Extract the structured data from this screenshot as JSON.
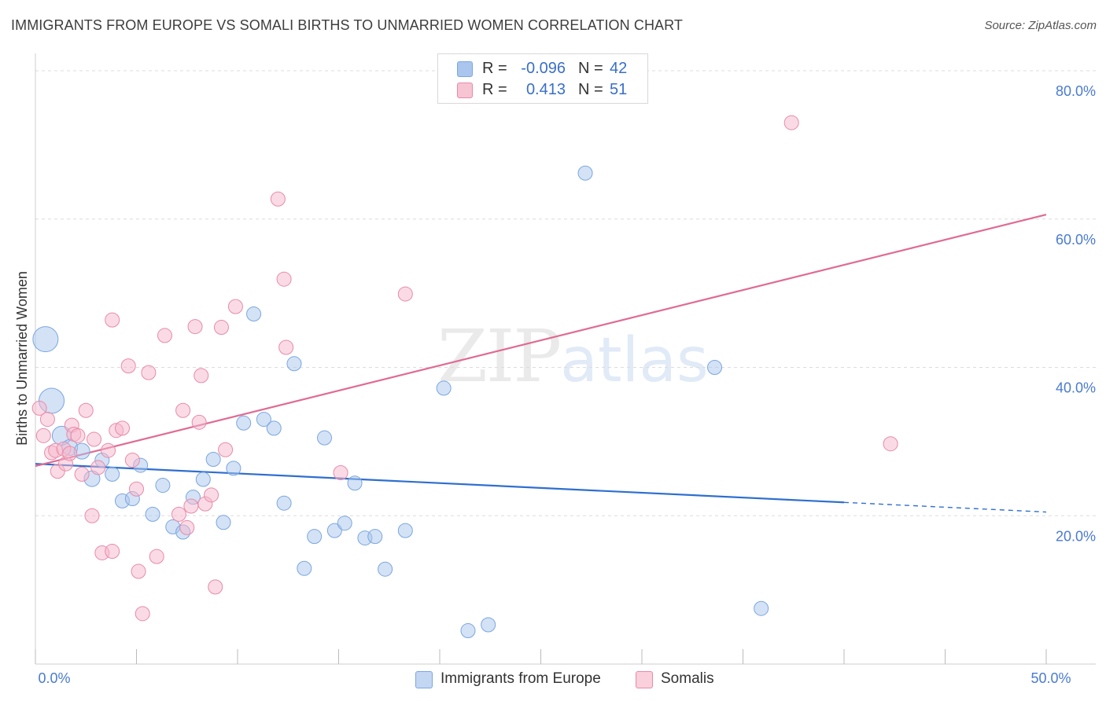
{
  "header": {
    "title": "IMMIGRANTS FROM EUROPE VS SOMALI BIRTHS TO UNMARRIED WOMEN CORRELATION CHART",
    "source": "Source: ZipAtlas.com"
  },
  "watermark": {
    "zip": "ZIP",
    "atlas": "atlas"
  },
  "legend": {
    "rows": [
      {
        "r_label": "R =",
        "r_value": "-0.096",
        "n_label": "N =",
        "n_value": "42",
        "color": "#aac6ee"
      },
      {
        "r_label": "R =",
        "r_value": "0.413",
        "n_label": "N =",
        "n_value": "51",
        "color": "#f6b8cb"
      }
    ]
  },
  "bottom_legend": [
    {
      "label": "Immigrants from Europe",
      "color": "#aac6ee"
    },
    {
      "label": "Somalis",
      "color": "#f6b8cb"
    }
  ],
  "chart_data": {
    "type": "scatter",
    "title": "IMMIGRANTS FROM EUROPE VS SOMALI BIRTHS TO UNMARRIED WOMEN CORRELATION CHART",
    "xlabel": "",
    "ylabel": "Births to Unmarried Women",
    "xlim": [
      0,
      50
    ],
    "ylim": [
      0,
      80
    ],
    "x_tick_labels": [
      {
        "value": 0,
        "label": "0.0%"
      },
      {
        "value": 50,
        "label": "50.0%"
      }
    ],
    "y_tick_labels": [
      {
        "value": 20,
        "label": "20.0%"
      },
      {
        "value": 40,
        "label": "40.0%"
      },
      {
        "value": 60,
        "label": "60.0%"
      },
      {
        "value": 80,
        "label": "80.0%"
      }
    ],
    "series": [
      {
        "name": "Immigrants from Europe",
        "color": "#aac6ee",
        "stroke": "#7aa6e0",
        "trend": {
          "x": [
            0,
            40
          ],
          "y": [
            27.0,
            21.8
          ],
          "dashed_to": [
            50,
            20.5
          ],
          "color": "#2f6fcf"
        },
        "points": [
          [
            0.5,
            43.8,
            16
          ],
          [
            0.8,
            35.5,
            16
          ],
          [
            1.3,
            30.8,
            12
          ],
          [
            1.7,
            29.2,
            10
          ],
          [
            2.3,
            28.7,
            10
          ],
          [
            2.8,
            25.0,
            10
          ],
          [
            3.3,
            27.5,
            9
          ],
          [
            3.8,
            25.6,
            9
          ],
          [
            4.3,
            22.0,
            9
          ],
          [
            4.8,
            22.3,
            9
          ],
          [
            5.2,
            26.8,
            9
          ],
          [
            5.8,
            20.2,
            9
          ],
          [
            6.3,
            24.1,
            9
          ],
          [
            6.8,
            18.5,
            9
          ],
          [
            7.3,
            17.8,
            9
          ],
          [
            7.8,
            22.5,
            9
          ],
          [
            8.3,
            24.9,
            9
          ],
          [
            8.8,
            27.6,
            9
          ],
          [
            9.3,
            19.1,
            9
          ],
          [
            9.8,
            26.4,
            9
          ],
          [
            10.3,
            32.5,
            9
          ],
          [
            10.8,
            47.2,
            9
          ],
          [
            11.3,
            33.0,
            9
          ],
          [
            11.8,
            31.8,
            9
          ],
          [
            12.3,
            21.7,
            9
          ],
          [
            12.8,
            40.5,
            9
          ],
          [
            13.3,
            12.9,
            9
          ],
          [
            13.8,
            17.2,
            9
          ],
          [
            14.3,
            30.5,
            9
          ],
          [
            14.8,
            18.0,
            9
          ],
          [
            15.3,
            19.0,
            9
          ],
          [
            15.8,
            24.4,
            9
          ],
          [
            16.3,
            17.0,
            9
          ],
          [
            16.8,
            17.2,
            9
          ],
          [
            17.3,
            12.8,
            9
          ],
          [
            18.3,
            18.0,
            9
          ],
          [
            20.2,
            37.2,
            9
          ],
          [
            21.4,
            4.5,
            9
          ],
          [
            22.4,
            5.3,
            9
          ],
          [
            27.2,
            66.2,
            9
          ],
          [
            33.6,
            40.0,
            9
          ],
          [
            35.9,
            7.5,
            9
          ]
        ]
      },
      {
        "name": "Somalis",
        "color": "#f6b8cb",
        "stroke": "#e98aa8",
        "trend": {
          "x": [
            0,
            50
          ],
          "y": [
            26.7,
            60.6
          ],
          "color": "#e06a93"
        },
        "points": [
          [
            0.2,
            34.5,
            9
          ],
          [
            0.4,
            30.8,
            9
          ],
          [
            0.6,
            33.0,
            9
          ],
          [
            0.8,
            28.5,
            9
          ],
          [
            1.0,
            28.8,
            9
          ],
          [
            1.1,
            26.0,
            9
          ],
          [
            1.4,
            29.0,
            9
          ],
          [
            1.5,
            27.0,
            9
          ],
          [
            1.7,
            28.4,
            9
          ],
          [
            1.8,
            32.2,
            9
          ],
          [
            1.9,
            31.0,
            9
          ],
          [
            2.1,
            30.8,
            9
          ],
          [
            2.3,
            25.6,
            9
          ],
          [
            2.5,
            34.2,
            9
          ],
          [
            2.8,
            20.0,
            9
          ],
          [
            2.9,
            30.3,
            9
          ],
          [
            3.1,
            26.5,
            9
          ],
          [
            3.3,
            15.0,
            9
          ],
          [
            3.6,
            28.8,
            9
          ],
          [
            3.8,
            15.2,
            9
          ],
          [
            3.8,
            46.4,
            9
          ],
          [
            4.0,
            31.5,
            9
          ],
          [
            4.3,
            31.8,
            9
          ],
          [
            4.6,
            40.2,
            9
          ],
          [
            4.8,
            27.5,
            9
          ],
          [
            5.0,
            23.6,
            9
          ],
          [
            5.1,
            12.5,
            9
          ],
          [
            5.3,
            6.8,
            9
          ],
          [
            5.6,
            39.3,
            9
          ],
          [
            6.0,
            14.5,
            9
          ],
          [
            6.4,
            44.3,
            9
          ],
          [
            7.1,
            20.2,
            9
          ],
          [
            7.3,
            34.2,
            9
          ],
          [
            7.5,
            18.4,
            9
          ],
          [
            7.7,
            21.3,
            9
          ],
          [
            7.9,
            45.5,
            9
          ],
          [
            8.1,
            32.6,
            9
          ],
          [
            8.2,
            38.9,
            9
          ],
          [
            8.4,
            21.6,
            9
          ],
          [
            8.7,
            22.8,
            9
          ],
          [
            8.9,
            10.4,
            9
          ],
          [
            9.2,
            45.4,
            9
          ],
          [
            9.4,
            28.9,
            9
          ],
          [
            9.9,
            48.2,
            9
          ],
          [
            12.0,
            62.7,
            9
          ],
          [
            12.3,
            51.9,
            9
          ],
          [
            12.4,
            42.7,
            9
          ],
          [
            15.1,
            25.8,
            9
          ],
          [
            18.3,
            49.9,
            9
          ],
          [
            37.4,
            73.0,
            9
          ],
          [
            42.3,
            29.7,
            9
          ]
        ]
      }
    ]
  }
}
